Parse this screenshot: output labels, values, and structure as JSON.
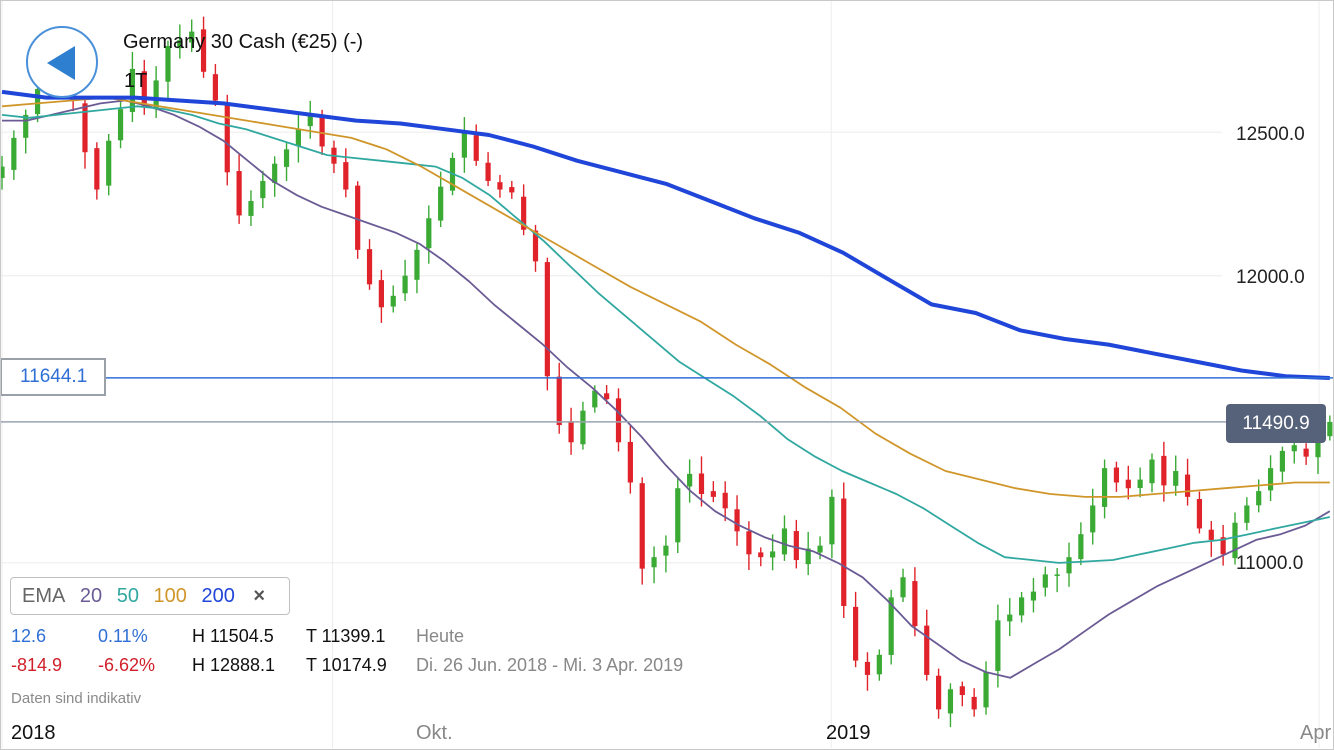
{
  "header": {
    "instrument": "Germany 30 Cash (€25) (-)",
    "timeframe": "1T"
  },
  "levels": {
    "line_label": "11644.1",
    "last_price_label": "11490.9"
  },
  "legend": {
    "indicator": "EMA",
    "periods": [
      {
        "label": "20",
        "color": "#6b5b95"
      },
      {
        "label": "50",
        "color": "#30a8a0"
      },
      {
        "label": "100",
        "color": "#d0962a"
      },
      {
        "label": "200",
        "color": "#1f46d8"
      }
    ],
    "close_icon": "×"
  },
  "stats": {
    "today": {
      "change": "12.6",
      "change_pct": "0.11%",
      "high": "H 11504.5",
      "low": "T 11399.1",
      "period": "Heute"
    },
    "range": {
      "change": "-814.9",
      "change_pct": "-6.62%",
      "high": "H 12888.1",
      "low": "T 10174.9",
      "period": "Di. 26 Jun. 2018 - Mi. 3 Apr. 2019"
    }
  },
  "disclaimer": "Daten sind indikativ",
  "colors": {
    "up": "#3aaa35",
    "down": "#e0232a",
    "level_line": "#2f6fd6",
    "price_line": "#9aa4b0",
    "positive_text": "#2f6fd6",
    "negative_text": "#d0202a"
  },
  "chart_data": {
    "type": "candlestick",
    "title": "Germany 30 Cash (€25) (-)",
    "timeframe": "1T",
    "y_ticks": [
      11000,
      12000,
      12500
    ],
    "y_tick_labels": [
      "11000.0",
      "12000.0",
      "12500.0"
    ],
    "ylim": [
      10460,
      12960
    ],
    "x_tick_labels": [
      "2018",
      "Okt.",
      "2019",
      "Apr"
    ],
    "x_tick_dates": [
      "2018-08-01",
      "2018-10-01",
      "2019-01-01",
      "2019-04-01"
    ],
    "xlim": [
      "2018-08-01",
      "2019-04-01"
    ],
    "horizontal_line": 11644.1,
    "last_price": 11490.9,
    "candles": {
      "start_date": "2018-08-01",
      "end_date": "2019-04-03",
      "close": [
        12380,
        12480,
        12560,
        12650,
        12760,
        12780,
        12610,
        12430,
        12300,
        12470,
        12580,
        12720,
        12590,
        12680,
        12800,
        12820,
        12850,
        12710,
        12610,
        12360,
        12210,
        12260,
        12330,
        12390,
        12440,
        12510,
        12560,
        12450,
        12390,
        12300,
        12090,
        11970,
        11890,
        11930,
        12000,
        12090,
        12200,
        12310,
        12410,
        12500,
        12400,
        12330,
        12300,
        12290,
        12160,
        12050,
        11650,
        11480,
        11420,
        11530,
        11600,
        11570,
        11420,
        11280,
        10980,
        11020,
        11060,
        11260,
        11310,
        11240,
        11230,
        11190,
        11110,
        11030,
        11020,
        11040,
        11120,
        11010,
        11050,
        11060,
        11230,
        10850,
        10660,
        10610,
        10680,
        10880,
        10950,
        10780,
        10610,
        10490,
        10560,
        10540,
        10490,
        10620,
        10800,
        10820,
        10880,
        10900,
        10960,
        10960,
        11020,
        11100,
        11200,
        11330,
        11280,
        11260,
        11290,
        11360,
        11270,
        11320,
        11230,
        11120,
        11080,
        11030,
        11140,
        11200,
        11250,
        11330,
        11390,
        11410,
        11370,
        11430,
        11490.9
      ],
      "note": "daily closes, one per trading day"
    },
    "series": [
      {
        "name": "EMA 20",
        "color": "#6b5b95",
        "values": [
          12540,
          12540,
          12560,
          12580,
          12600,
          12610,
          12590,
          12560,
          12520,
          12470,
          12400,
          12330,
          12280,
          12240,
          12210,
          12180,
          12150,
          12110,
          12050,
          11980,
          11900,
          11830,
          11760,
          11680,
          11610,
          11530,
          11440,
          11340,
          11250,
          11180,
          11130,
          11090,
          11060,
          11040,
          11000,
          10950,
          10870,
          10780,
          10720,
          10660,
          10620,
          10600,
          10650,
          10700,
          10760,
          10820,
          10870,
          10920,
          10960,
          11000,
          11040,
          11080,
          11100,
          11130,
          11180
        ]
      },
      {
        "name": "EMA 50",
        "color": "#30a8a0",
        "values": [
          12560,
          12550,
          12560,
          12570,
          12580,
          12590,
          12580,
          12560,
          12530,
          12510,
          12480,
          12450,
          12420,
          12410,
          12400,
          12390,
          12380,
          12340,
          12280,
          12200,
          12120,
          12030,
          11940,
          11860,
          11780,
          11700,
          11640,
          11580,
          11510,
          11430,
          11370,
          11320,
          11280,
          11240,
          11190,
          11130,
          11070,
          11020,
          11010,
          11000,
          11005,
          11010,
          11030,
          11050,
          11070,
          11080,
          11100,
          11120,
          11140,
          11160
        ]
      },
      {
        "name": "EMA 100",
        "color": "#d0962a",
        "values": [
          12590,
          12600,
          12610,
          12620,
          12600,
          12580,
          12560,
          12540,
          12520,
          12500,
          12480,
          12440,
          12380,
          12310,
          12240,
          12170,
          12100,
          12030,
          11960,
          11900,
          11840,
          11760,
          11690,
          11610,
          11540,
          11450,
          11380,
          11320,
          11290,
          11260,
          11240,
          11230,
          11230,
          11240,
          11250,
          11260,
          11270,
          11280,
          11280
        ]
      },
      {
        "name": "EMA 200",
        "color": "#1f46d8",
        "values": [
          12640,
          12620,
          12620,
          12620,
          12610,
          12600,
          12580,
          12560,
          12540,
          12530,
          12510,
          12490,
          12450,
          12400,
          12360,
          12320,
          12260,
          12200,
          12150,
          12080,
          11990,
          11900,
          11870,
          11810,
          11780,
          11760,
          11730,
          11700,
          11670,
          11650,
          11644
        ]
      }
    ]
  }
}
